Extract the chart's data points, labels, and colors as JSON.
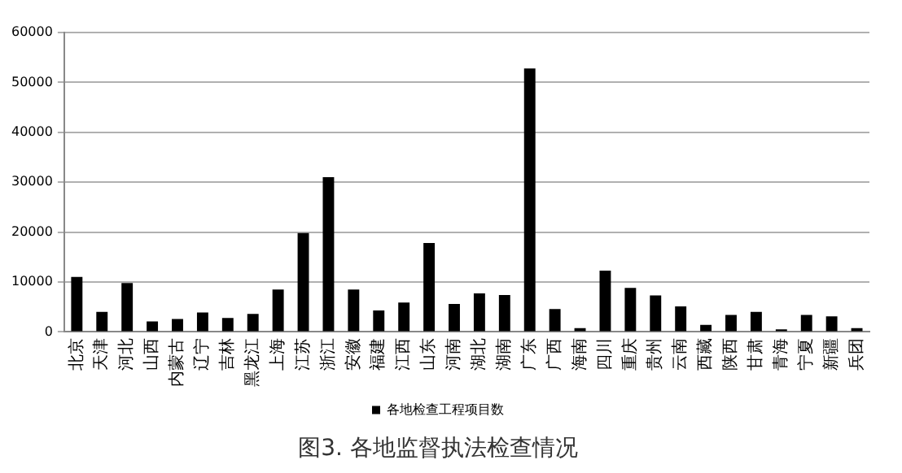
{
  "chart_data": {
    "type": "bar",
    "title": "图3. 各地监督执法检查情况",
    "categories": [
      "北京",
      "天津",
      "河北",
      "山西",
      "内蒙古",
      "辽宁",
      "吉林",
      "黑龙江",
      "上海",
      "江苏",
      "浙江",
      "安徽",
      "福建",
      "江西",
      "山东",
      "河南",
      "湖北",
      "湖南",
      "广东",
      "广西",
      "海南",
      "四川",
      "重庆",
      "贵州",
      "云南",
      "西藏",
      "陕西",
      "甘肃",
      "青海",
      "宁夏",
      "新疆",
      "兵团"
    ],
    "series": [
      {
        "name": "各地检查工程项目数",
        "color": "#000000",
        "values": [
          11000,
          4000,
          9800,
          2100,
          2600,
          3900,
          2800,
          3600,
          8500,
          19800,
          31000,
          8500,
          4300,
          5900,
          17800,
          5600,
          7700,
          7400,
          52800,
          4600,
          750,
          12300,
          8800,
          7300,
          5100,
          1400,
          3400,
          4000,
          500,
          3400,
          3100,
          750
        ]
      }
    ],
    "ylim": [
      0,
      60000
    ],
    "yticks": [
      0,
      10000,
      20000,
      30000,
      40000,
      50000,
      60000
    ],
    "grid": "y",
    "legend": "bottom"
  }
}
